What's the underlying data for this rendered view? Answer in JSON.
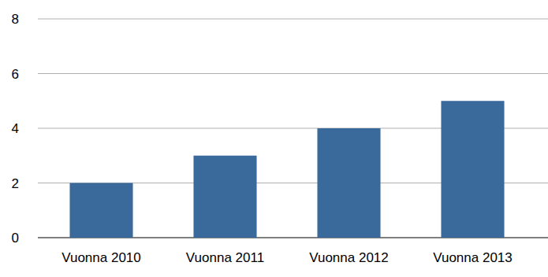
{
  "chart_data": {
    "type": "bar",
    "categories": [
      "Vuonna 2010",
      "Vuonna 2011",
      "Vuonna 2012",
      "Vuonna 2013"
    ],
    "values": [
      2,
      3,
      4,
      5
    ],
    "color": "#3a6a9b",
    "ylim": [
      0,
      8
    ],
    "yticks": [
      0,
      2,
      4,
      6,
      8
    ],
    "grid": true
  }
}
